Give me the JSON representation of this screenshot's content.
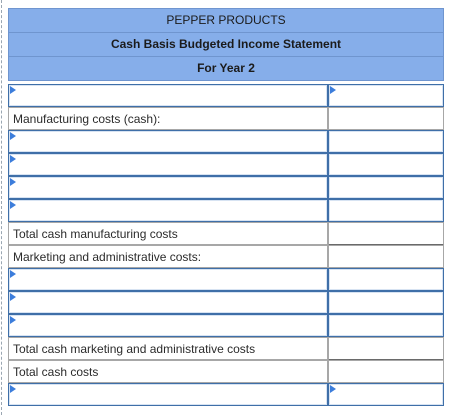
{
  "statement": {
    "company": "PEPPER PRODUCTS",
    "title": "Cash Basis Budgeted Income Statement",
    "period": "For Year 2"
  },
  "labels": {
    "manufacturing_header": "Manufacturing costs (cash):",
    "total_manufacturing": "Total cash manufacturing costs",
    "marketing_header": "Marketing and administrative costs:",
    "total_marketing": "Total cash marketing and administrative costs",
    "total_cash": "Total cash costs"
  },
  "colors": {
    "header_bg": "#86aeea",
    "input_border": "#3f6fa8",
    "dropdown_arrow": "#3c7ddb"
  }
}
